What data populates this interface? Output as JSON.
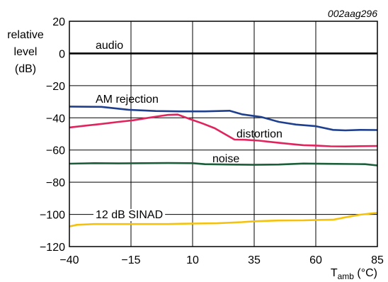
{
  "reference": "002aag296",
  "chart_data": {
    "type": "line",
    "ylabel_lines": [
      "relative",
      "level",
      "(dB)"
    ],
    "xlabel": {
      "main": "T",
      "sub": "amb",
      "unit": " (°C)"
    },
    "xlim": [
      -40,
      85
    ],
    "ylim": [
      -120,
      20
    ],
    "xticks": [
      -40,
      -15,
      10,
      35,
      60,
      85
    ],
    "yticks": [
      20,
      0,
      -20,
      -40,
      -60,
      -80,
      -100,
      -120
    ],
    "xtick_labels": [
      "−40",
      "−15",
      "10",
      "35",
      "60",
      "85"
    ],
    "ytick_labels": [
      "20",
      "0",
      "−20",
      "−40",
      "−60",
      "−80",
      "−100",
      "−120"
    ],
    "grid": true,
    "series": [
      {
        "name": "audio",
        "color": "#000000",
        "x": [
          -40,
          85
        ],
        "y": [
          0,
          0
        ]
      },
      {
        "name": "AM rejection",
        "color": "#1f3f8f",
        "x": [
          -40,
          -27,
          -16,
          -5,
          5,
          15,
          25,
          30,
          38,
          45,
          52,
          60,
          67,
          72,
          78,
          85
        ],
        "y": [
          -33,
          -33.2,
          -35,
          -35.8,
          -36,
          -36,
          -35.6,
          -37.8,
          -39.5,
          -42.5,
          -44.2,
          -45.2,
          -47.5,
          -47.8,
          -47.5,
          -47.6
        ]
      },
      {
        "name": "distortion",
        "color": "#e0245e",
        "x": [
          -40,
          -34,
          -27,
          -20,
          -14,
          -8,
          -3,
          0,
          4,
          9,
          14,
          19,
          23,
          27,
          31,
          37,
          43,
          50,
          55,
          60,
          66,
          72,
          78,
          85
        ],
        "y": [
          -46,
          -45,
          -43.8,
          -42.5,
          -41.5,
          -40,
          -38.8,
          -38.2,
          -38,
          -40.8,
          -43.5,
          -46.5,
          -50,
          -53.5,
          -53.6,
          -54.2,
          -55.2,
          -56.3,
          -57,
          -57.2,
          -57.7,
          -57.8,
          -57.6,
          -57.5
        ]
      },
      {
        "name": "noise",
        "color": "#1a5e3a",
        "x": [
          -40,
          -30,
          -20,
          -10,
          0,
          10,
          15,
          25,
          35,
          45,
          55,
          65,
          75,
          80,
          85
        ],
        "y": [
          -68.5,
          -68.2,
          -68.3,
          -68.2,
          -68.1,
          -68.2,
          -68.8,
          -69,
          -69.2,
          -69,
          -68.4,
          -68.6,
          -68.7,
          -68.8,
          -69.6
        ]
      },
      {
        "name": "12 dB SINAD",
        "color": "#f4c20d",
        "x": [
          -40,
          -37,
          -30,
          -20,
          -10,
          0,
          10,
          20,
          30,
          35,
          45,
          55,
          62,
          67,
          72,
          78,
          85
        ],
        "y": [
          -107.5,
          -106.5,
          -106,
          -106,
          -106,
          -106,
          -105.7,
          -105.5,
          -104.8,
          -104.3,
          -103.8,
          -103.7,
          -103.4,
          -103.3,
          -101.8,
          -100.2,
          -99
        ]
      }
    ]
  }
}
